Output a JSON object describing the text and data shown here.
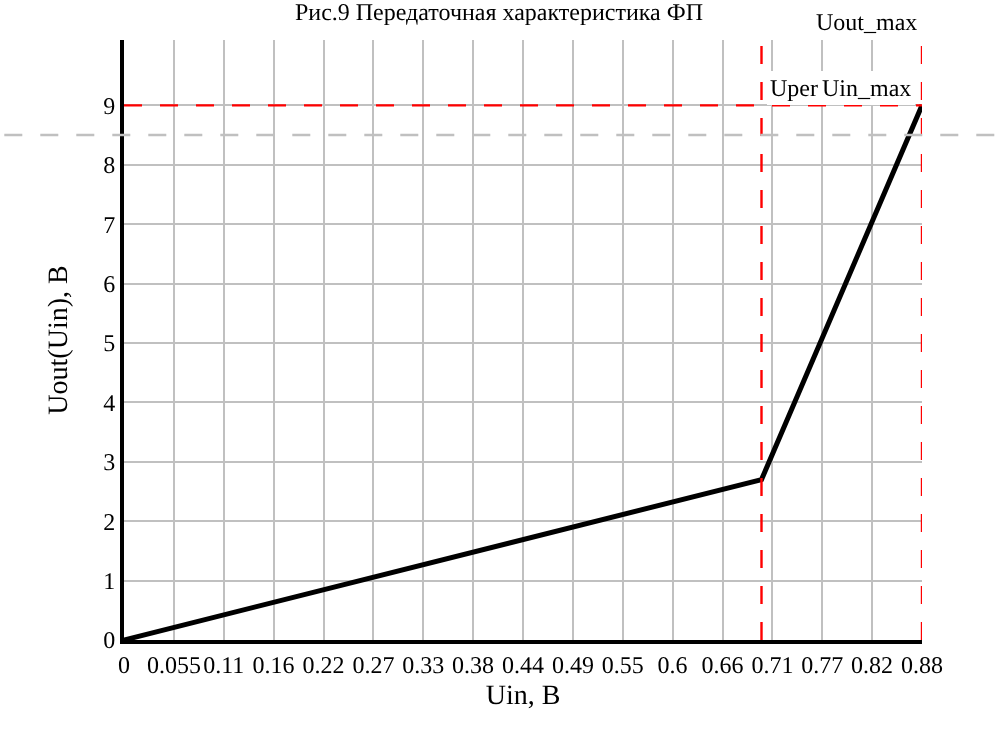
{
  "chart_data": {
    "type": "line",
    "title": "Рис.9 Передаточная характеристика ФП",
    "xlabel": "Uin, B",
    "ylabel": "Uout(Uin), B",
    "x": [
      0,
      0.703,
      0.88
    ],
    "series": [
      {
        "color": "#000000",
        "values": [
          0,
          2.7,
          9
        ]
      }
    ],
    "xlim": [
      0,
      0.88
    ],
    "ylim": [
      0,
      10.1
    ],
    "xticks": [
      0,
      {
        "value": 0.055,
        "label": "0.055"
      },
      {
        "value": 0.11,
        "label": "0.11"
      },
      {
        "value": 0.165,
        "label": "0.16"
      },
      {
        "value": 0.22,
        "label": "0.22"
      },
      {
        "value": 0.275,
        "label": "0.27"
      },
      {
        "value": 0.33,
        "label": "0.33"
      },
      {
        "value": 0.385,
        "label": "0.38"
      },
      {
        "value": 0.44,
        "label": "0.44"
      },
      {
        "value": 0.495,
        "label": "0.49"
      },
      {
        "value": 0.55,
        "label": "0.55"
      },
      {
        "value": 0.605,
        "label": "0.6"
      },
      {
        "value": 0.66,
        "label": "0.66"
      },
      {
        "value": 0.715,
        "label": "0.71"
      },
      {
        "value": 0.77,
        "label": "0.77"
      },
      {
        "value": 0.825,
        "label": "0.82"
      },
      {
        "value": 0.88,
        "label": "0.88"
      }
    ],
    "yticks": [
      0,
      1,
      2,
      3,
      4,
      5,
      6,
      7,
      8,
      9
    ],
    "ref_lines": [
      {
        "axis": "x",
        "value": 0.703,
        "label": "Uper",
        "color": "#ff0000",
        "line_style": "dashed"
      },
      {
        "axis": "x",
        "value": 0.88,
        "label": "Uin_max",
        "color": "#ff0000",
        "line_style": "dashed"
      },
      {
        "axis": "y",
        "value": 9,
        "label": "Uout_max",
        "color": "#ff0000",
        "line_style": "dashed"
      },
      {
        "axis": "y",
        "value": 8.5,
        "color": "#c0c0c0",
        "line_style": "dashed"
      }
    ],
    "grid": true,
    "marker": "none",
    "line_style": "solid"
  }
}
